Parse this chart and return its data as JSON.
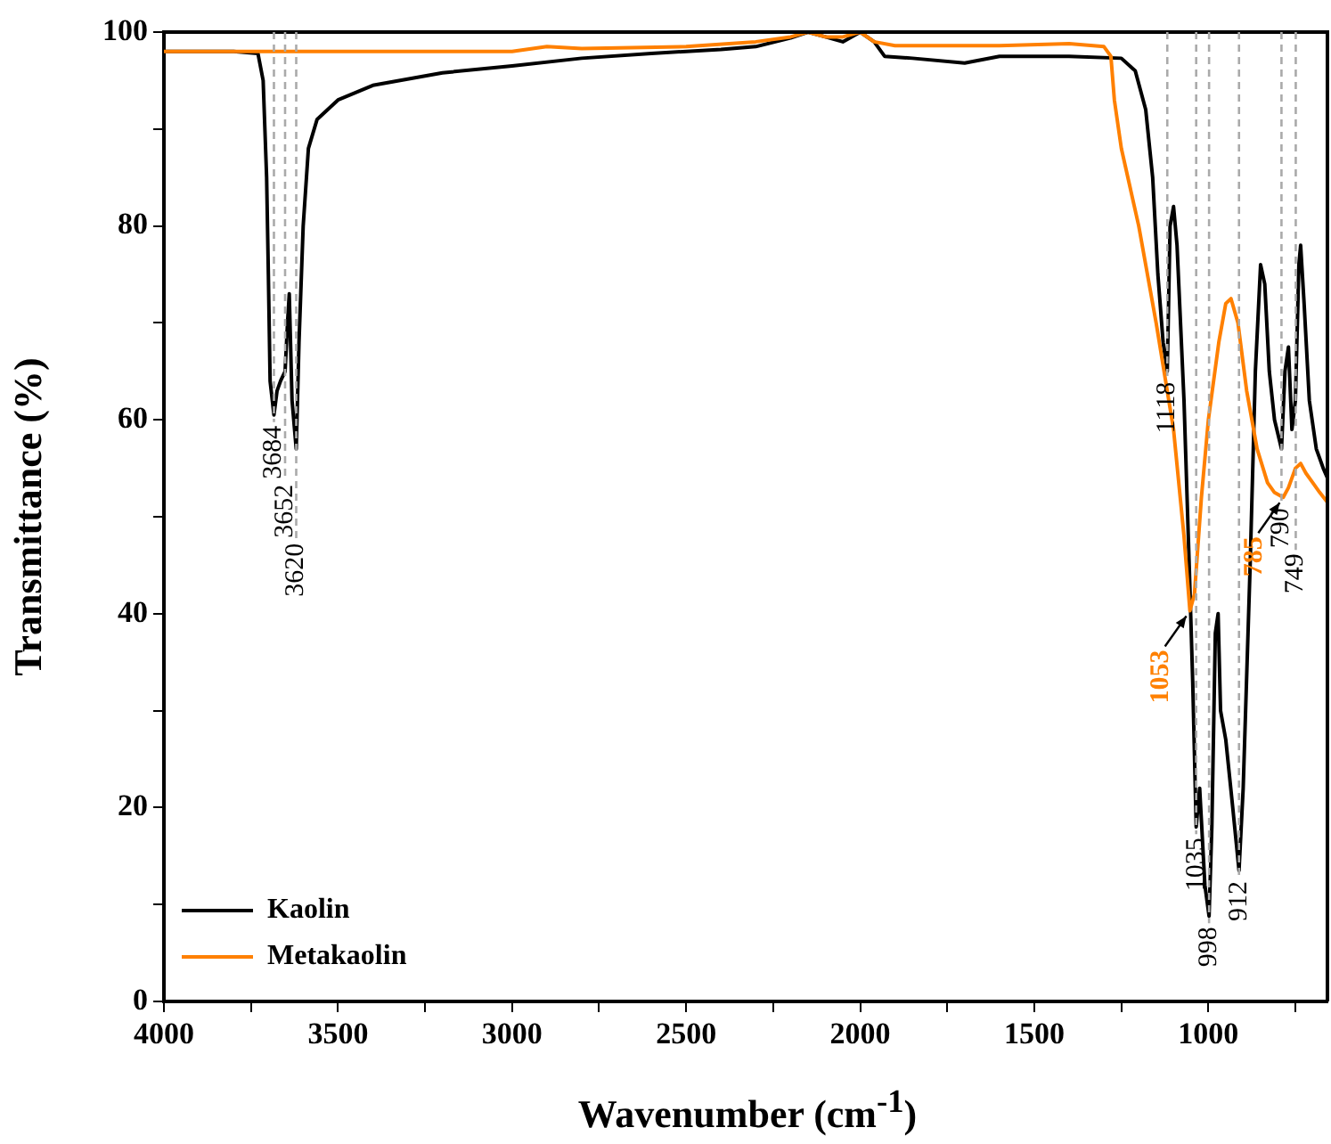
{
  "chart_data": {
    "type": "line",
    "xlabel": "Wavenumber (cm$^{-1}$)",
    "ylabel": "Transmittance (%)",
    "xlim": [
      4000,
      658
    ],
    "xticks": [
      4000,
      {
        "value": 3750,
        "label": null
      },
      3500,
      {
        "value": 3250,
        "label": null
      },
      3000,
      {
        "value": 2750,
        "label": null
      },
      2500,
      {
        "value": 2250,
        "label": null
      },
      2000,
      {
        "value": 1750,
        "label": null
      },
      1500,
      {
        "value": 1250,
        "label": null
      },
      1000,
      {
        "value": 750,
        "label": null
      }
    ],
    "ylim": [
      0,
      100
    ],
    "yticks": [
      0,
      {
        "value": 10,
        "label": null
      },
      20,
      {
        "value": 30,
        "label": null
      },
      40,
      {
        "value": 50,
        "label": null
      },
      60,
      {
        "value": 70,
        "label": null
      },
      80,
      {
        "value": 90,
        "label": null
      },
      100
    ],
    "grid": false,
    "legend": "bottom left",
    "marker": "none",
    "line_style": "solid",
    "series": [
      {
        "name": "Kaolin",
        "color": "#000000",
        "x": [
          4000,
          3800,
          3730,
          3715,
          3705,
          3700,
          3695,
          3684,
          3675,
          3665,
          3652,
          3645,
          3640,
          3632,
          3620,
          3612,
          3600,
          3585,
          3560,
          3500,
          3400,
          3200,
          3000,
          2800,
          2600,
          2400,
          2300,
          2200,
          2150,
          2100,
          2050,
          2000,
          1960,
          1930,
          1850,
          1700,
          1600,
          1400,
          1250,
          1210,
          1180,
          1160,
          1145,
          1130,
          1118,
          1110,
          1100,
          1090,
          1070,
          1055,
          1045,
          1035,
          1025,
          1010,
          998,
          990,
          980,
          972,
          965,
          950,
          930,
          912,
          900,
          880,
          865,
          850,
          838,
          825,
          810,
          790,
          780,
          770,
          760,
          750,
          740,
          735,
          725,
          710,
          690,
          670,
          658
        ],
        "values": [
          98,
          98,
          97.8,
          95,
          85,
          75,
          64,
          60.5,
          63,
          64,
          65,
          70,
          73,
          62,
          57,
          68,
          80,
          88,
          91,
          93,
          94.5,
          95.8,
          96.5,
          97.3,
          97.8,
          98.2,
          98.5,
          99.4,
          100,
          99.5,
          99,
          100,
          99,
          97.5,
          97.3,
          96.8,
          97.5,
          97.5,
          97.3,
          96,
          92,
          85,
          75,
          68,
          65,
          80,
          82,
          78,
          62,
          45,
          33,
          18,
          22,
          12,
          8.8,
          18,
          38,
          40,
          30,
          27,
          20,
          13.5,
          22,
          45,
          65,
          76,
          74,
          65,
          60,
          57,
          65,
          67.5,
          59,
          62,
          76,
          78,
          72,
          62,
          57,
          55,
          54
        ]
      },
      {
        "name": "Metakaolin",
        "color": "#ff8000",
        "x": [
          4000,
          3500,
          3000,
          2900,
          2800,
          2500,
          2300,
          2200,
          2150,
          2100,
          2050,
          2000,
          1960,
          1900,
          1600,
          1400,
          1300,
          1280,
          1270,
          1250,
          1200,
          1150,
          1100,
          1070,
          1053,
          1040,
          1020,
          1000,
          970,
          950,
          935,
          915,
          890,
          860,
          830,
          810,
          785,
          770,
          750,
          735,
          720,
          700,
          680,
          658
        ],
        "values": [
          98,
          98,
          98,
          98.5,
          98.3,
          98.5,
          99,
          99.5,
          100,
          99.5,
          99.5,
          100,
          99,
          98.6,
          98.6,
          98.8,
          98.5,
          97.5,
          93,
          88,
          80,
          70,
          59,
          48,
          40.3,
          42,
          52,
          60,
          68,
          72,
          72.5,
          70,
          63,
          57,
          53.5,
          52.5,
          52,
          53,
          55,
          55.5,
          54.5,
          53.5,
          52.5,
          51.5
        ]
      }
    ],
    "ref_lines": [
      {
        "axis": "x",
        "value": 3684,
        "label": "3684",
        "color": "#aaaaaa",
        "line_style": "dashed"
      },
      {
        "axis": "x",
        "value": 3652,
        "label": "3652",
        "color": "#aaaaaa",
        "line_style": "dashed"
      },
      {
        "axis": "x",
        "value": 3620,
        "label": "3620",
        "color": "#aaaaaa",
        "line_style": "dashed"
      },
      {
        "axis": "x",
        "value": 1118,
        "label": "1118",
        "color": "#aaaaaa",
        "line_style": "dashed"
      },
      {
        "axis": "x",
        "value": 1035,
        "label": "1035",
        "color": "#aaaaaa",
        "line_style": "dashed"
      },
      {
        "axis": "x",
        "value": 998,
        "label": "998",
        "color": "#aaaaaa",
        "line_style": "dashed"
      },
      {
        "axis": "x",
        "value": 912,
        "label": "912",
        "color": "#aaaaaa",
        "line_style": "dashed"
      },
      {
        "axis": "x",
        "value": 790,
        "label": "790",
        "color": "#aaaaaa",
        "line_style": "dashed"
      },
      {
        "axis": "x",
        "value": 749,
        "label": "749",
        "color": "#aaaaaa",
        "line_style": "dashed"
      }
    ],
    "annotations": [
      {
        "text": "1053",
        "x": 1053,
        "y": 40.3
      },
      {
        "text": "785",
        "x": 785,
        "y": 52
      }
    ]
  }
}
